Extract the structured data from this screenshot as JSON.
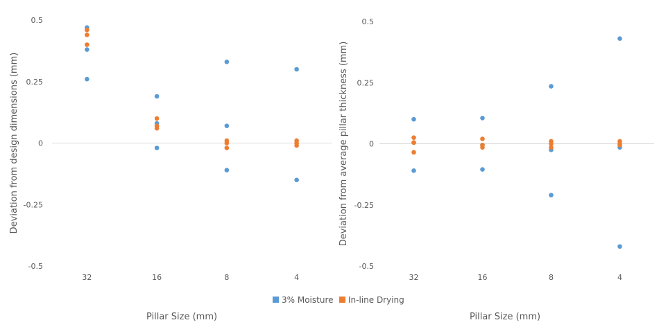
{
  "chart_data": [
    {
      "type": "scatter",
      "title": "",
      "xlabel": "Pillar Size (mm)",
      "ylabel": "Deviation from design dimensions (mm)",
      "categories": [
        "32",
        "16",
        "8",
        "4"
      ],
      "yticks": [
        "0.5",
        "0.25",
        "0",
        "-0.25",
        "-0.5"
      ],
      "ylim": [
        -0.5,
        0.5
      ],
      "series": [
        {
          "name": "3% Moisture",
          "color": "#5B9BD5",
          "points": [
            [
              "32",
              0.47
            ],
            [
              "32",
              0.38
            ],
            [
              "32",
              0.26
            ],
            [
              "16",
              0.19
            ],
            [
              "16",
              0.08
            ],
            [
              "16",
              -0.02
            ],
            [
              "8",
              0.33
            ],
            [
              "8",
              0.07
            ],
            [
              "8",
              -0.11
            ],
            [
              "4",
              0.3
            ],
            [
              "4",
              -0.15
            ]
          ]
        },
        {
          "name": "In-line Drying",
          "color": "#ED7D31",
          "points": [
            [
              "32",
              0.46
            ],
            [
              "32",
              0.44
            ],
            [
              "32",
              0.4
            ],
            [
              "16",
              0.1
            ],
            [
              "16",
              0.07
            ],
            [
              "16",
              0.06
            ],
            [
              "8",
              0.01
            ],
            [
              "8",
              0.0
            ],
            [
              "8",
              -0.02
            ],
            [
              "4",
              0.01
            ],
            [
              "4",
              0.0
            ],
            [
              "4",
              -0.01
            ]
          ]
        }
      ]
    },
    {
      "type": "scatter",
      "title": "",
      "xlabel": "Pillar Size (mm)",
      "ylabel": "Deviation from average pillar thickness (mm)",
      "categories": [
        "32",
        "16",
        "8",
        "4"
      ],
      "yticks": [
        "0.5",
        "0.25",
        "0",
        "-0.25",
        "-0.5"
      ],
      "ylim": [
        -0.5,
        0.5
      ],
      "series": [
        {
          "name": "3% Moisture",
          "color": "#5B9BD5",
          "points": [
            [
              "32",
              0.1
            ],
            [
              "32",
              0.005
            ],
            [
              "32",
              -0.11
            ],
            [
              "16",
              0.105
            ],
            [
              "16",
              -0.005
            ],
            [
              "16",
              -0.105
            ],
            [
              "8",
              0.235
            ],
            [
              "8",
              -0.025
            ],
            [
              "8",
              -0.21
            ],
            [
              "4",
              0.43
            ],
            [
              "4",
              -0.015
            ],
            [
              "4",
              -0.42
            ]
          ]
        },
        {
          "name": "In-line Drying",
          "color": "#ED7D31",
          "points": [
            [
              "32",
              0.025
            ],
            [
              "32",
              0.005
            ],
            [
              "32",
              -0.035
            ],
            [
              "16",
              0.02
            ],
            [
              "16",
              -0.005
            ],
            [
              "16",
              -0.015
            ],
            [
              "8",
              0.01
            ],
            [
              "8",
              0.0
            ],
            [
              "8",
              -0.015
            ],
            [
              "4",
              0.01
            ],
            [
              "4",
              0.0
            ],
            [
              "4",
              -0.005
            ]
          ]
        }
      ]
    }
  ],
  "legend": {
    "position": "bottom-center",
    "items": [
      "3% Moisture",
      "In-line Drying"
    ]
  }
}
